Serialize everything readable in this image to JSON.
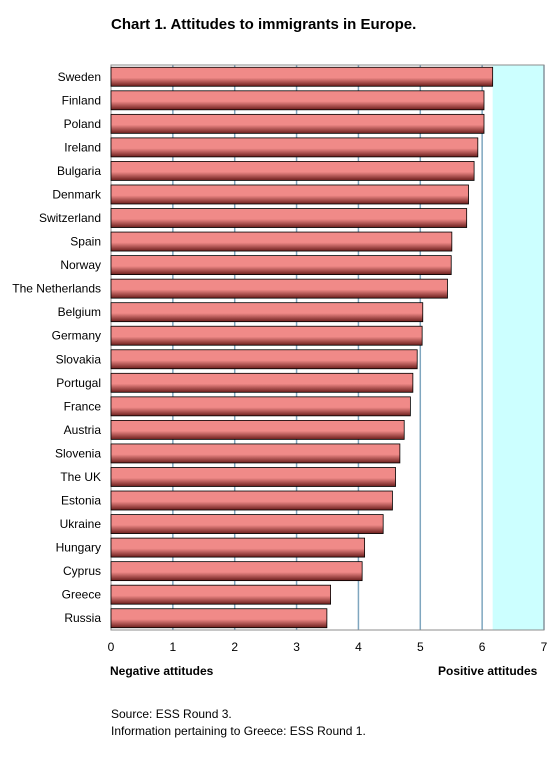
{
  "chart_data": {
    "type": "bar",
    "orientation": "horizontal",
    "title": "Chart 1. Attitudes to immigrants in Europe.",
    "categories": [
      "Sweden",
      "Finland",
      "Poland",
      "Ireland",
      "Bulgaria",
      "Denmark",
      "Switzerland",
      "Spain",
      "Norway",
      "The Netherlands",
      "Belgium",
      "Germany",
      "Slovakia",
      "Portugal",
      "France",
      "Austria",
      "Slovenia",
      "The UK",
      "Estonia",
      "Ukraine",
      "Hungary",
      "Cyprus",
      "Greece",
      "Russia"
    ],
    "values": [
      6.17,
      6.03,
      6.03,
      5.93,
      5.87,
      5.78,
      5.75,
      5.51,
      5.5,
      5.44,
      5.04,
      5.03,
      4.95,
      4.88,
      4.84,
      4.74,
      4.67,
      4.6,
      4.55,
      4.4,
      4.1,
      4.06,
      3.55,
      3.49
    ],
    "xlim": [
      0,
      7
    ],
    "xticks": [
      "0",
      "1",
      "2",
      "3",
      "4",
      "5",
      "6",
      "7"
    ],
    "xlabel_left": "Negative attitudes",
    "xlabel_right": "Positive attitudes",
    "grid": true,
    "colors": {
      "bar_light": "#f08a88",
      "bar_dark": "#6b1e1c",
      "plot_bg": "#ccffff",
      "grid": "#7fa6bf"
    }
  },
  "footer": {
    "source": "Source: ESS Round 3.",
    "note": "Information pertaining to Greece: ESS Round 1."
  }
}
